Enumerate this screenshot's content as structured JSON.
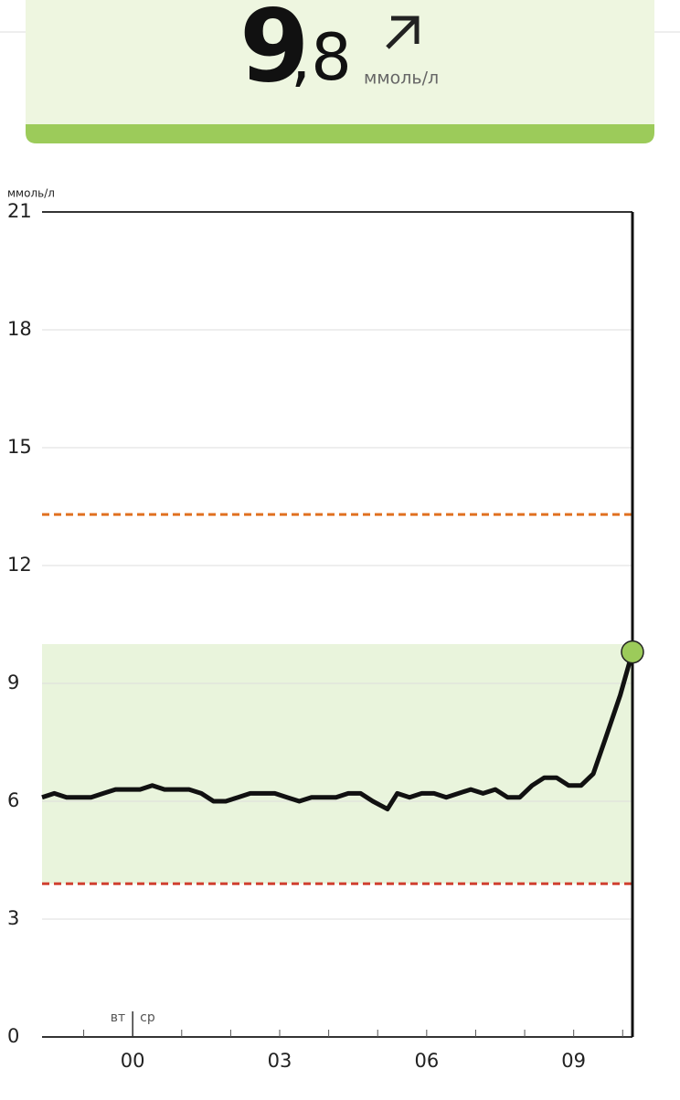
{
  "header": {
    "integer": "9",
    "fraction": ",8",
    "unit": "ммоль/л"
  },
  "chart_data": {
    "type": "line",
    "y_unit": "ммоль/л",
    "ylim": [
      0,
      21
    ],
    "yticks": [
      0,
      3,
      6,
      9,
      12,
      15,
      18,
      21
    ],
    "xlim": [
      -1.85,
      10.2
    ],
    "xticks": [
      {
        "value": 0,
        "label": "00"
      },
      {
        "value": 3,
        "label": "03"
      },
      {
        "value": 6,
        "label": "06"
      },
      {
        "value": 9,
        "label": "09"
      }
    ],
    "xminor_ticks": [
      -1,
      1,
      2,
      4,
      5,
      7,
      8,
      10
    ],
    "day_change": {
      "x": 0,
      "before": "вт",
      "after": "ср"
    },
    "target_range": [
      3.9,
      10
    ],
    "target_color": "#e9f4dc",
    "high_alarm": 13.3,
    "high_color": "#e07020",
    "low_alarm": 3.9,
    "low_color": "#d04030",
    "grid": true,
    "series": [
      {
        "color": "#111111",
        "x": [
          -1.85,
          -1.6,
          -1.35,
          -1.1,
          -0.85,
          -0.6,
          -0.35,
          -0.1,
          0.15,
          0.4,
          0.65,
          0.9,
          1.15,
          1.4,
          1.65,
          1.9,
          2.15,
          2.4,
          2.65,
          2.9,
          3.15,
          3.4,
          3.65,
          3.9,
          4.15,
          4.4,
          4.65,
          4.9,
          5.2,
          5.4,
          5.65,
          5.9,
          6.15,
          6.4,
          6.65,
          6.9,
          7.15,
          7.4,
          7.65,
          7.9,
          8.15,
          8.4,
          8.65,
          8.9,
          9.15,
          9.4,
          9.65,
          9.95,
          10.2
        ],
        "values": [
          6.1,
          6.2,
          6.1,
          6.1,
          6.1,
          6.2,
          6.3,
          6.3,
          6.3,
          6.4,
          6.3,
          6.3,
          6.3,
          6.2,
          6.0,
          6.0,
          6.1,
          6.2,
          6.2,
          6.2,
          6.1,
          6.0,
          6.1,
          6.1,
          6.1,
          6.2,
          6.2,
          6.0,
          5.8,
          6.2,
          6.1,
          6.2,
          6.2,
          6.1,
          6.2,
          6.3,
          6.2,
          6.3,
          6.1,
          6.1,
          6.4,
          6.6,
          6.6,
          6.4,
          6.4,
          6.7,
          7.6,
          8.7,
          9.8
        ]
      }
    ],
    "current": {
      "x": 10.2,
      "value": 9.8,
      "color": "#9ccb5a"
    }
  }
}
